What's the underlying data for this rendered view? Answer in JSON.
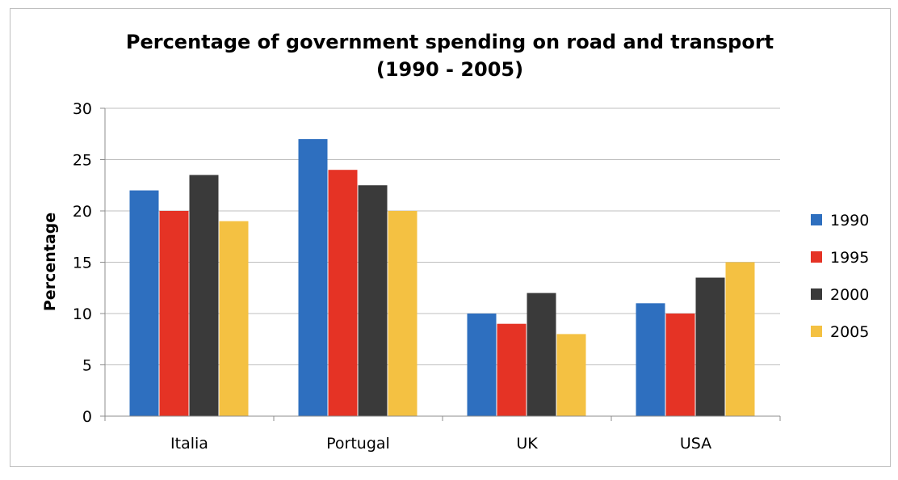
{
  "chart_data": {
    "type": "bar",
    "title": "Percentage of government spending on road and transport",
    "subtitle": "(1990 - 2005)",
    "xlabel": "",
    "ylabel": "Percentage",
    "categories": [
      "Italia",
      "Portugal",
      "UK",
      "USA"
    ],
    "ylim": [
      0,
      30
    ],
    "yticks": [
      0,
      5,
      10,
      15,
      20,
      25,
      30
    ],
    "grid": true,
    "legend_position": "right",
    "series": [
      {
        "name": "1990",
        "color": "#2e6fbf",
        "values": [
          22,
          27,
          10,
          11
        ]
      },
      {
        "name": "1995",
        "color": "#e53325",
        "values": [
          20,
          24,
          9,
          10
        ]
      },
      {
        "name": "2000",
        "color": "#3a3a3a",
        "values": [
          23.5,
          22.5,
          12,
          13.5
        ]
      },
      {
        "name": "2005",
        "color": "#f4c142",
        "values": [
          19,
          20,
          8,
          15
        ]
      }
    ]
  }
}
